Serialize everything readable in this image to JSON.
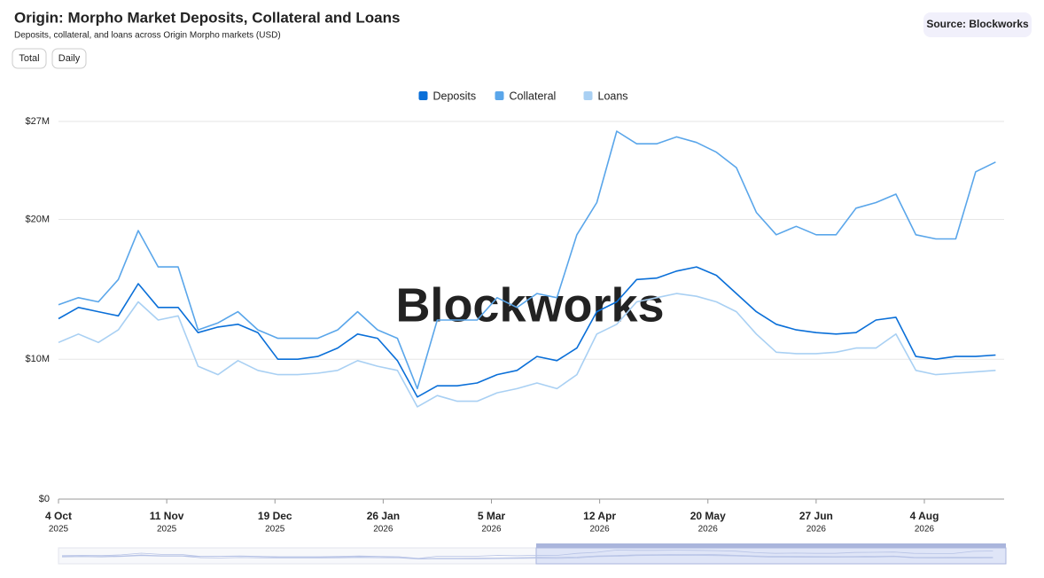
{
  "chart_data": {
    "type": "line",
    "title": "Origin: Morpho Market Deposits, Collateral and Loans",
    "subtitle": "Deposits, collateral, and loans across Origin Morpho markets (USD)",
    "x": [
      "2025-10-04",
      "2025-10-11",
      "2025-10-18",
      "2025-10-25",
      "2025-11-01",
      "2025-11-08",
      "2025-11-15",
      "2025-11-22",
      "2025-11-29",
      "2025-12-06",
      "2025-12-13",
      "2025-12-20",
      "2025-12-27",
      "2026-01-03",
      "2026-01-10",
      "2026-01-17",
      "2026-01-24",
      "2026-01-31",
      "2026-02-07",
      "2026-02-14",
      "2026-02-21",
      "2026-02-28",
      "2026-03-07",
      "2026-03-14",
      "2026-03-21",
      "2026-03-28",
      "2026-04-04",
      "2026-04-11",
      "2026-04-18",
      "2026-04-25",
      "2026-05-02",
      "2026-05-09",
      "2026-05-16",
      "2026-05-23",
      "2026-05-30",
      "2026-06-06",
      "2026-06-13",
      "2026-06-20",
      "2026-06-27",
      "2026-07-04",
      "2026-07-11",
      "2026-07-18",
      "2026-07-25",
      "2026-08-01",
      "2026-08-08",
      "2026-08-15",
      "2026-08-22",
      "2026-08-29"
    ],
    "series": [
      {
        "name": "Deposits",
        "color": "#0a6fd8",
        "values": [
          12900000,
          13700000,
          13400000,
          13100000,
          15400000,
          13700000,
          13700000,
          11900000,
          12300000,
          12500000,
          11900000,
          10000000,
          10000000,
          10200000,
          10800000,
          11800000,
          11500000,
          9900000,
          7300000,
          8100000,
          8100000,
          8300000,
          8900000,
          9200000,
          10200000,
          9900000,
          10800000,
          13400000,
          14100000,
          15700000,
          15800000,
          16300000,
          16600000,
          16000000,
          14700000,
          13400000,
          12500000,
          12100000,
          11900000,
          11800000,
          11900000,
          12800000,
          13000000,
          10200000,
          10000000,
          10200000,
          10200000,
          10300000
        ]
      },
      {
        "name": "Collateral",
        "color": "#5aa6ea",
        "values": [
          13900000,
          14400000,
          14100000,
          15700000,
          19200000,
          16600000,
          16600000,
          12100000,
          12600000,
          13400000,
          12100000,
          11500000,
          11500000,
          11500000,
          12100000,
          13400000,
          12100000,
          11500000,
          7900000,
          12800000,
          12800000,
          12800000,
          14400000,
          13700000,
          14700000,
          14400000,
          18900000,
          21200000,
          26300000,
          25400000,
          25400000,
          25900000,
          25500000,
          24800000,
          23700000,
          20500000,
          18900000,
          19500000,
          18900000,
          18900000,
          20800000,
          21200000,
          21800000,
          18900000,
          18600000,
          18600000,
          23400000,
          24100000
        ]
      },
      {
        "name": "Loans",
        "color": "#a9d0f3",
        "values": [
          11200000,
          11800000,
          11200000,
          12100000,
          14100000,
          12800000,
          13100000,
          9500000,
          8900000,
          9900000,
          9200000,
          8900000,
          8900000,
          9000000,
          9200000,
          9900000,
          9500000,
          9200000,
          6600000,
          7400000,
          7000000,
          7000000,
          7600000,
          7900000,
          8300000,
          7900000,
          8900000,
          11800000,
          12500000,
          14100000,
          14400000,
          14700000,
          14500000,
          14100000,
          13400000,
          11800000,
          10500000,
          10400000,
          10400000,
          10500000,
          10800000,
          10800000,
          11800000,
          9200000,
          8900000,
          9000000,
          9100000,
          9200000
        ]
      }
    ],
    "xlim": [
      "2025-10-04",
      "2026-09-01"
    ],
    "xticks": [
      {
        "value": "2025-10-04",
        "label": "4 Oct",
        "year": "2025"
      },
      {
        "value": "2025-11-11",
        "label": "11 Nov",
        "year": "2025"
      },
      {
        "value": "2025-12-19",
        "label": "19 Dec",
        "year": "2025"
      },
      {
        "value": "2026-01-26",
        "label": "26 Jan",
        "year": "2026"
      },
      {
        "value": "2026-03-05",
        "label": "5 Mar",
        "year": "2026"
      },
      {
        "value": "2026-04-12",
        "label": "12 Apr",
        "year": "2026"
      },
      {
        "value": "2026-05-20",
        "label": "20 May",
        "year": "2026"
      },
      {
        "value": "2026-06-27",
        "label": "27 Jun",
        "year": "2026"
      },
      {
        "value": "2026-08-04",
        "label": "4 Aug",
        "year": "2026"
      }
    ],
    "ylim": [
      0,
      27000000
    ],
    "yticks": [
      {
        "value": 0,
        "label": "$0"
      },
      {
        "value": 10000000,
        "label": "$10M"
      },
      {
        "value": 20000000,
        "label": "$20M"
      },
      {
        "value": 27000000,
        "label": "$27M"
      }
    ],
    "grid": true,
    "legend": "top"
  },
  "ui": {
    "source": "Source: Blockworks",
    "buttons": [
      "Total",
      "Daily"
    ],
    "watermark": "Blockworks"
  }
}
